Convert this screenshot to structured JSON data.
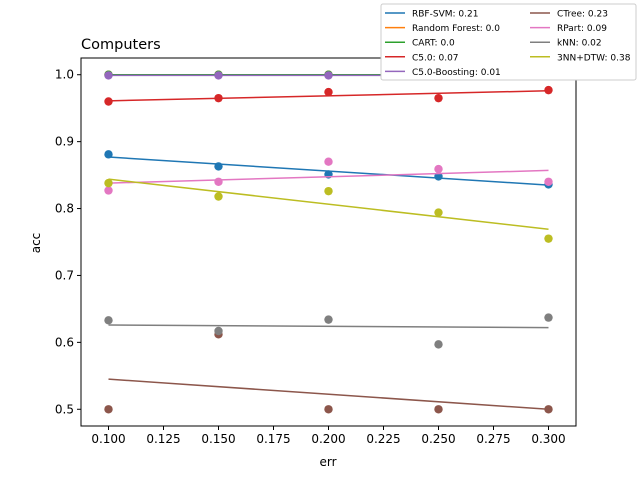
{
  "chart_data": {
    "type": "scatter",
    "title": "Computers",
    "xlabel": "err",
    "ylabel": "acc",
    "xlim": [
      0.0875,
      0.3125
    ],
    "ylim": [
      0.475,
      1.025
    ],
    "x_ticks": [
      "0.100",
      "0.125",
      "0.150",
      "0.175",
      "0.200",
      "0.225",
      "0.250",
      "0.275",
      "0.300"
    ],
    "y_ticks": [
      "0.5",
      "0.6",
      "0.7",
      "0.8",
      "0.9",
      "1.0"
    ],
    "grid": false,
    "legend_position": "top-right, outside plot",
    "x": [
      0.1,
      0.15,
      0.2,
      0.25,
      0.3
    ],
    "series": [
      {
        "name": "RBF-SVM: 0.21",
        "color": "#1f77b4",
        "values": [
          0.881,
          0.863,
          0.851,
          0.848,
          0.836
        ],
        "fit": [
          0.877,
          0.835
        ]
      },
      {
        "name": "Random Forest: 0.0",
        "color": "#ff7f0e",
        "values": [
          1.0,
          1.0,
          1.0,
          1.0,
          1.0
        ],
        "fit": [
          1.0,
          1.0
        ]
      },
      {
        "name": "CART: 0.0",
        "color": "#2ca02c",
        "values": [
          1.0,
          1.0,
          1.0,
          1.0,
          1.0
        ],
        "fit": [
          1.0,
          1.0
        ]
      },
      {
        "name": "C5.0: 0.07",
        "color": "#d62728",
        "values": [
          0.96,
          0.965,
          0.974,
          0.965,
          0.977
        ],
        "fit": [
          0.961,
          0.976
        ]
      },
      {
        "name": "C5.0-Boosting: 0.01",
        "color": "#9467bd",
        "values": [
          0.999,
          0.999,
          0.999,
          0.998,
          0.999
        ],
        "fit": [
          0.999,
          0.999
        ]
      },
      {
        "name": "CTree: 0.23",
        "color": "#8c564b",
        "values": [
          0.5,
          0.612,
          0.5,
          0.5,
          0.5
        ],
        "fit": [
          0.545,
          0.5
        ]
      },
      {
        "name": "RPart: 0.09",
        "color": "#e377c2",
        "values": [
          0.827,
          0.84,
          0.87,
          0.859,
          0.84
        ],
        "fit": [
          0.838,
          0.857
        ]
      },
      {
        "name": "kNN: 0.02",
        "color": "#7f7f7f",
        "values": [
          0.633,
          0.617,
          0.634,
          0.597,
          0.637
        ],
        "fit": [
          0.626,
          0.622
        ]
      },
      {
        "name": "3NN+DTW: 0.38",
        "color": "#bcbd22",
        "values": [
          0.838,
          0.818,
          0.826,
          0.794,
          0.755
        ],
        "fit": [
          0.844,
          0.769
        ]
      }
    ]
  }
}
